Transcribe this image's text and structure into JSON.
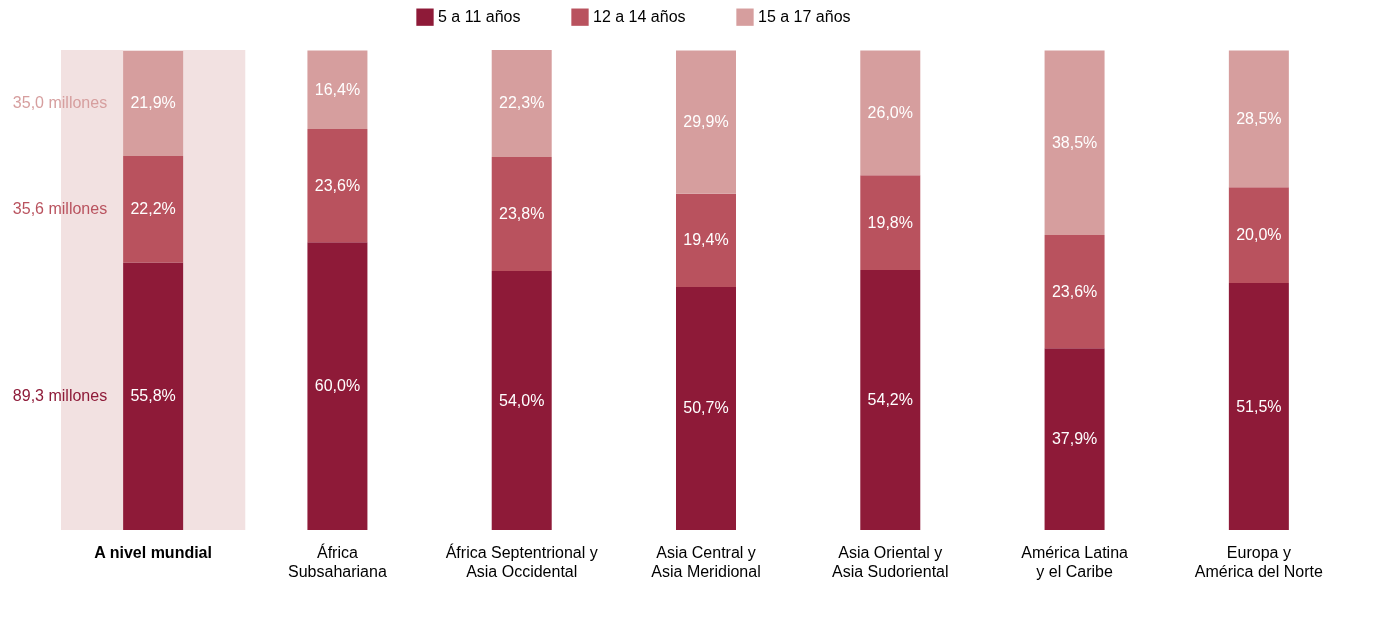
{
  "chart_data": {
    "type": "bar",
    "stacked": true,
    "categories": [
      "A nivel mundial",
      "África\nSubsahariana",
      "África Septentrional y\nAsia Occidental",
      "Asia Central y\nAsia Meridional",
      "Asia Oriental y\nAsia Sudoriental",
      "América Latina\ny el Caribe",
      "Europa y\nAmérica del Norte"
    ],
    "series": [
      {
        "name": "5 a 11 años",
        "color": "#8e1a38",
        "values": [
          55.8,
          60.0,
          54.0,
          50.7,
          54.2,
          37.9,
          51.5
        ],
        "value_labels": [
          "55,8%",
          "60,0%",
          "54,0%",
          "50,7%",
          "54,2%",
          "37,9%",
          "51,5%"
        ]
      },
      {
        "name": "12 a 14 años",
        "color": "#b9525e",
        "values": [
          22.2,
          23.6,
          23.8,
          19.4,
          19.8,
          23.6,
          20.0
        ],
        "value_labels": [
          "22,2%",
          "23,6%",
          "23,8%",
          "19,4%",
          "19,8%",
          "23,6%",
          "20,0%"
        ]
      },
      {
        "name": "15 a 17 años",
        "color": "#d69e9e",
        "values": [
          21.9,
          16.4,
          22.3,
          29.9,
          26.0,
          38.5,
          28.5
        ],
        "value_labels": [
          "21,9%",
          "16,4%",
          "22,3%",
          "29,9%",
          "26,0%",
          "38,5%",
          "28,5%"
        ]
      }
    ],
    "annotations": [
      "89,3 millones",
      "35,6 millones",
      "35,0 millones"
    ],
    "bands": [
      {
        "axis": "x",
        "from": "A nivel mundial",
        "to": "A nivel mundial",
        "color": "#f2e1e1"
      }
    ],
    "ylim": [
      0,
      100.1
    ],
    "tick_labels": "x",
    "legend": "top"
  }
}
